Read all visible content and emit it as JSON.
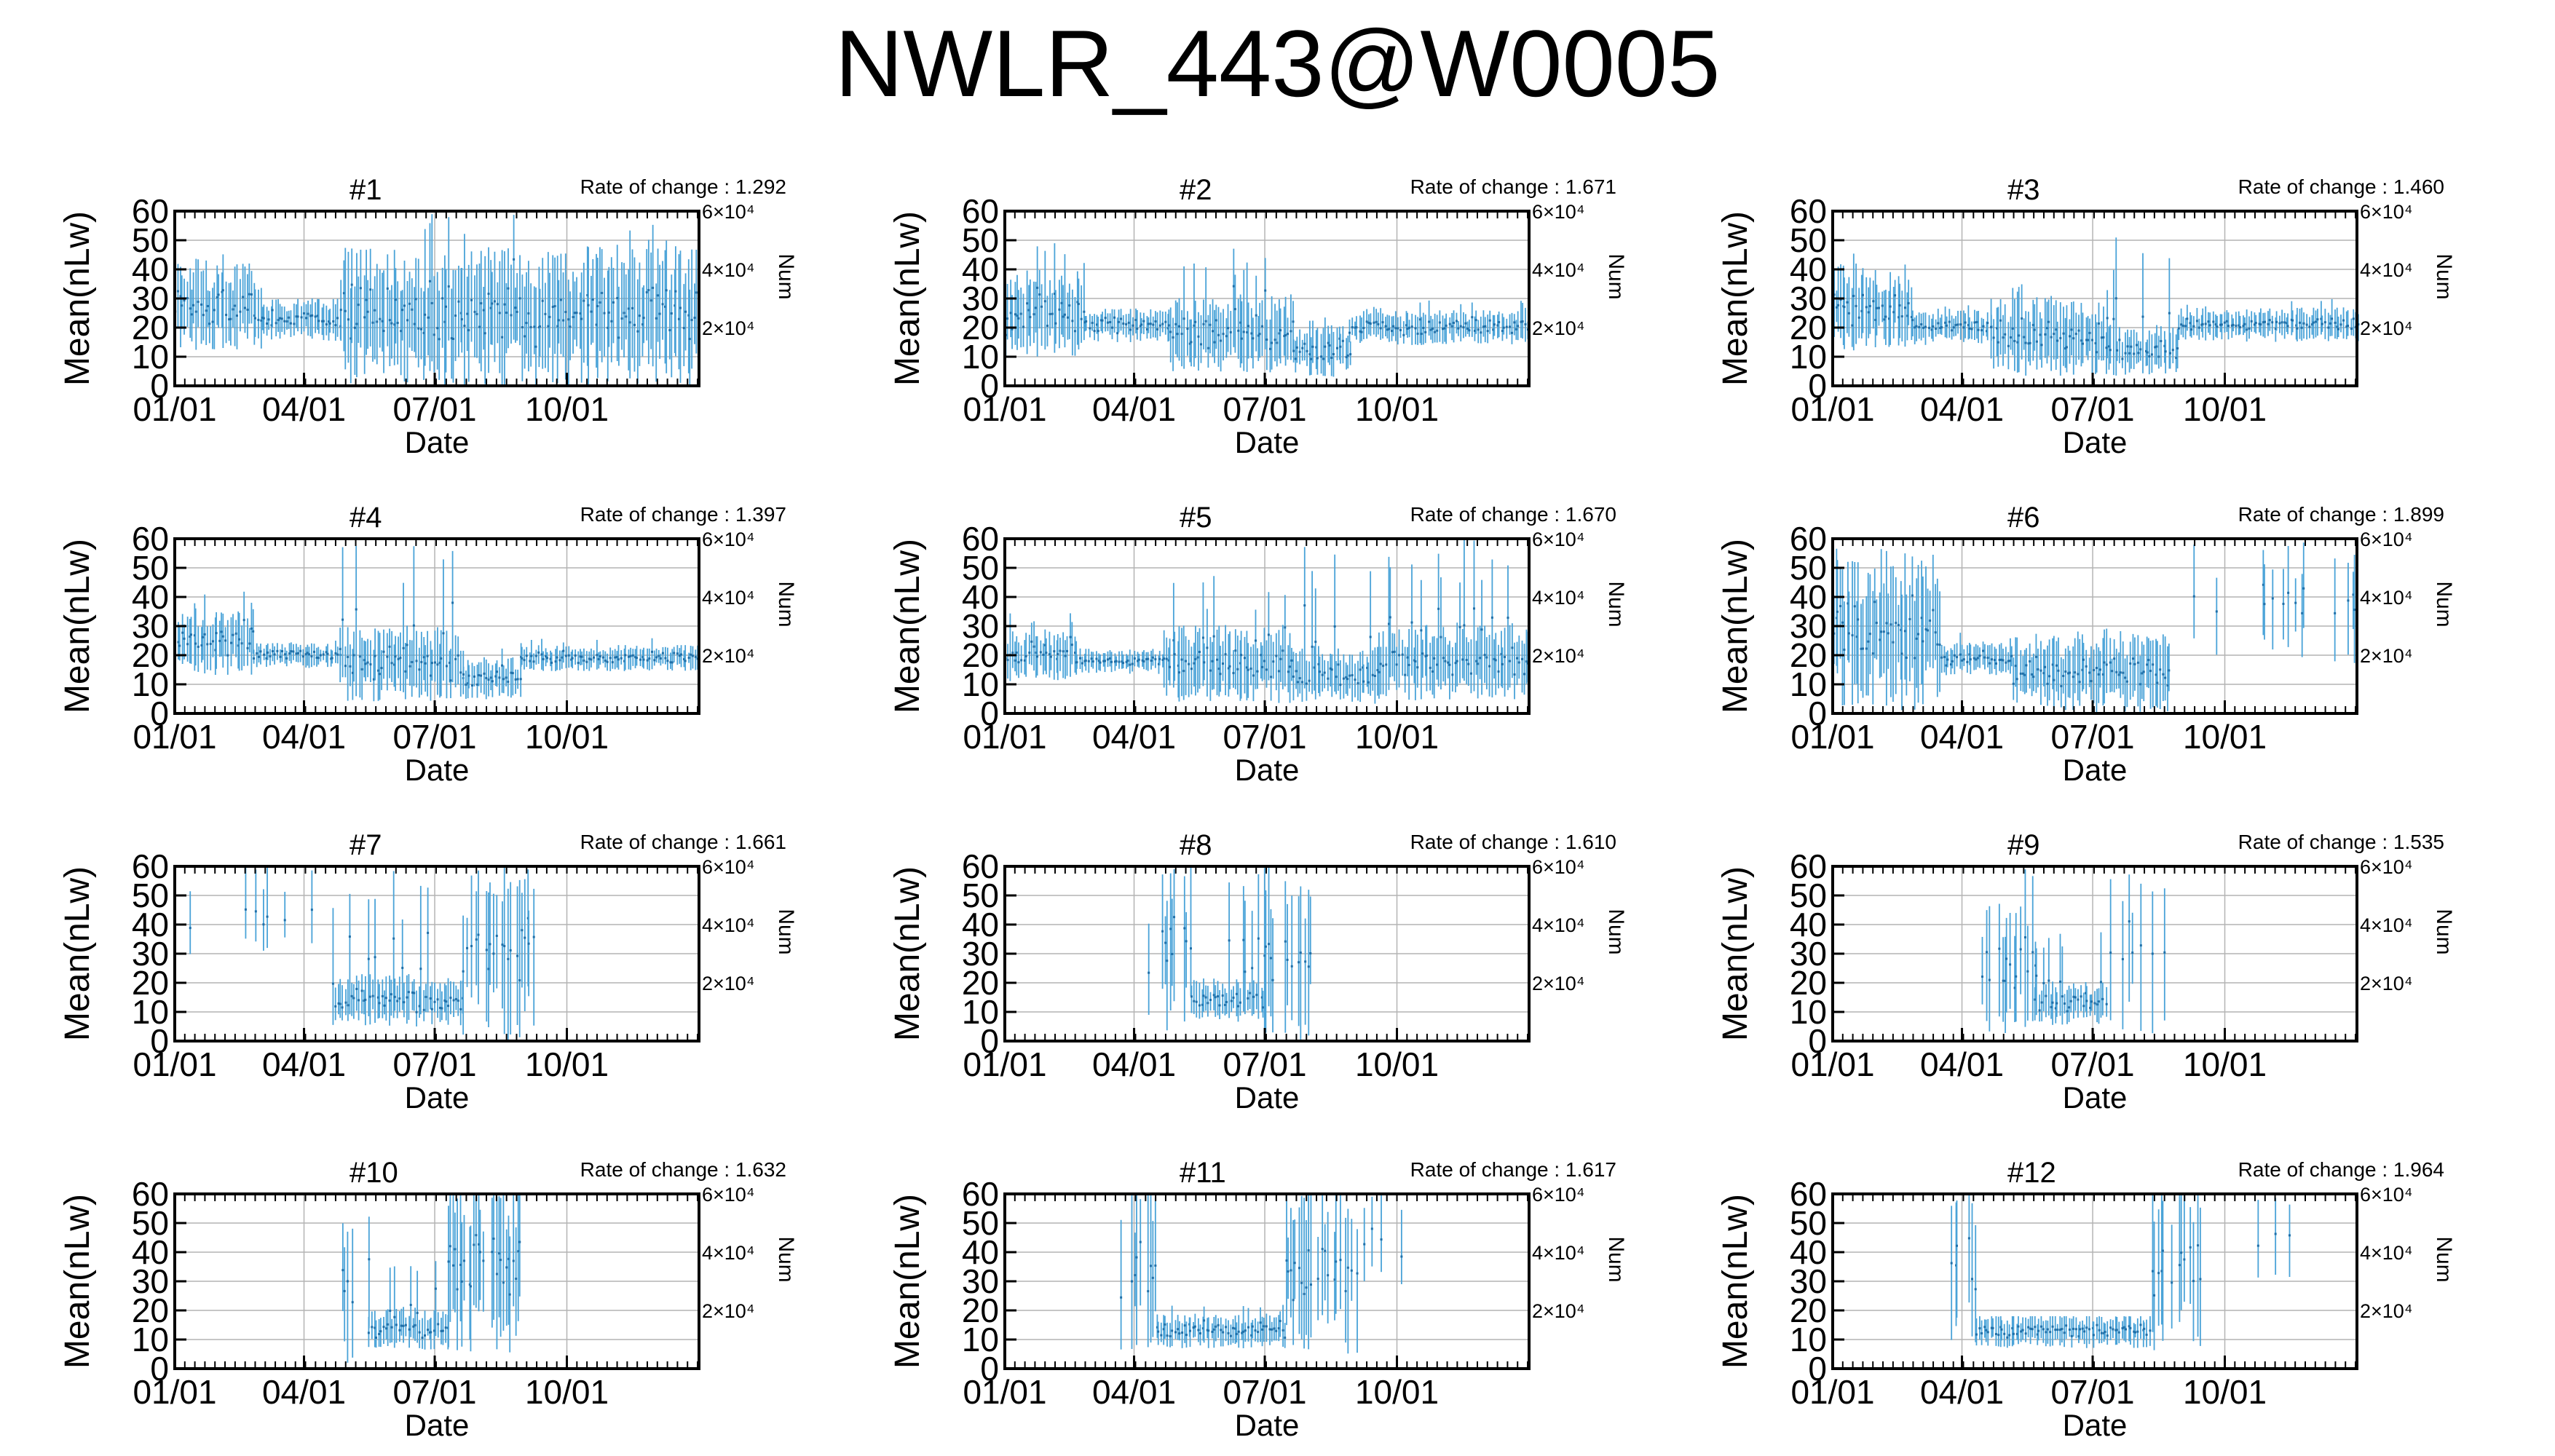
{
  "title": "NWLR_443@W0005",
  "colors": {
    "series": "#4aa3d8",
    "axis": "#000000",
    "grid": "#b4b4b4"
  },
  "common": {
    "xlabel": "Date",
    "ylabel": "Mean(nLw)",
    "y2label": "Num",
    "ylim": [
      0,
      60
    ],
    "yticks": [
      0,
      10,
      20,
      30,
      40,
      50,
      60
    ],
    "xticks": [
      "01/01",
      "04/01",
      "07/01",
      "10/01"
    ],
    "xtick_days": [
      0,
      90,
      181,
      273
    ],
    "xlim_days": [
      0,
      365
    ],
    "y2ticks_label": [
      "2×10⁴",
      "4×10⁴",
      "6×10⁴"
    ],
    "y2ticks_value": [
      20000,
      40000,
      60000
    ],
    "y2lim": [
      0,
      60000
    ],
    "rate_prefix": "Rate of change : "
  },
  "chart_data": [
    {
      "type": "scatter",
      "title": "#1",
      "rate": "1.292",
      "segments": [
        {
          "from": 0,
          "to": 60,
          "center": 27,
          "spread": 10,
          "max": 48
        },
        {
          "from": 60,
          "to": 115,
          "center": 23,
          "spread": 5,
          "max": 30
        },
        {
          "from": 115,
          "to": 365,
          "center": 24,
          "spread": 16,
          "max": 60
        }
      ]
    },
    {
      "type": "scatter",
      "title": "#2",
      "rate": "1.671",
      "segments": [
        {
          "from": 0,
          "to": 55,
          "center": 25,
          "spread": 10,
          "max": 50
        },
        {
          "from": 55,
          "to": 115,
          "center": 21,
          "spread": 4,
          "max": 28
        },
        {
          "from": 115,
          "to": 200,
          "center": 18,
          "spread": 9,
          "max": 48
        },
        {
          "from": 200,
          "to": 240,
          "center": 12,
          "spread": 6,
          "max": 25
        },
        {
          "from": 240,
          "to": 365,
          "center": 20,
          "spread": 4,
          "max": 30
        }
      ]
    },
    {
      "type": "scatter",
      "title": "#3",
      "rate": "1.460",
      "segments": [
        {
          "from": 0,
          "to": 55,
          "center": 27,
          "spread": 10,
          "max": 48
        },
        {
          "from": 55,
          "to": 110,
          "center": 20,
          "spread": 4,
          "max": 28
        },
        {
          "from": 110,
          "to": 190,
          "center": 17,
          "spread": 9,
          "max": 36
        },
        {
          "from": 190,
          "to": 240,
          "center": 12,
          "spread": 6,
          "max": 52
        },
        {
          "from": 240,
          "to": 365,
          "center": 21,
          "spread": 4,
          "max": 30
        }
      ]
    },
    {
      "type": "scatter",
      "title": "#4",
      "rate": "1.397",
      "segments": [
        {
          "from": 0,
          "to": 55,
          "center": 25,
          "spread": 8,
          "max": 43
        },
        {
          "from": 55,
          "to": 115,
          "center": 20,
          "spread": 3,
          "max": 25
        },
        {
          "from": 115,
          "to": 200,
          "center": 17,
          "spread": 9,
          "max": 58
        },
        {
          "from": 200,
          "to": 240,
          "center": 12,
          "spread": 5,
          "max": 25
        },
        {
          "from": 240,
          "to": 365,
          "center": 19,
          "spread": 3,
          "max": 26
        }
      ]
    },
    {
      "type": "scatter",
      "title": "#5",
      "rate": "1.670",
      "segments": [
        {
          "from": 0,
          "to": 50,
          "center": 20,
          "spread": 6,
          "max": 35
        },
        {
          "from": 50,
          "to": 110,
          "center": 18,
          "spread": 3,
          "max": 24
        },
        {
          "from": 110,
          "to": 200,
          "center": 17,
          "spread": 9,
          "max": 48
        },
        {
          "from": 200,
          "to": 260,
          "center": 13,
          "spread": 7,
          "max": 60
        },
        {
          "from": 260,
          "to": 365,
          "center": 18,
          "spread": 9,
          "max": 60
        }
      ]
    },
    {
      "type": "scatter",
      "title": "#6",
      "rate": "1.899",
      "segments": [
        {
          "from": 0,
          "to": 75,
          "center": 28,
          "spread": 18,
          "max": 60
        },
        {
          "from": 75,
          "to": 125,
          "center": 19,
          "spread": 4,
          "max": 30
        },
        {
          "from": 125,
          "to": 235,
          "center": 14,
          "spread": 9,
          "max": 30
        },
        {
          "from": 235,
          "to": 365,
          "center": 38,
          "spread": 14,
          "max": 60,
          "sparse": 0.18
        }
      ]
    },
    {
      "type": "scatter",
      "title": "#7",
      "rate": "1.661",
      "segments": [
        {
          "from": 10,
          "to": 110,
          "center": 45,
          "spread": 12,
          "max": 60,
          "sparse": 0.08
        },
        {
          "from": 110,
          "to": 200,
          "center": 14,
          "spread": 6,
          "max": 60
        },
        {
          "from": 200,
          "to": 250,
          "center": 30,
          "spread": 20,
          "max": 60,
          "sparse": 0.7
        }
      ]
    },
    {
      "type": "scatter",
      "title": "#8",
      "rate": "1.610",
      "segments": [
        {
          "from": 100,
          "to": 130,
          "center": 30,
          "spread": 20,
          "max": 60,
          "sparse": 0.5
        },
        {
          "from": 130,
          "to": 180,
          "center": 14,
          "spread": 5,
          "max": 60
        },
        {
          "from": 180,
          "to": 215,
          "center": 30,
          "spread": 20,
          "max": 60,
          "sparse": 0.5
        }
      ]
    },
    {
      "type": "scatter",
      "title": "#9",
      "rate": "1.535",
      "segments": [
        {
          "from": 100,
          "to": 140,
          "center": 25,
          "spread": 15,
          "max": 60,
          "sparse": 0.6
        },
        {
          "from": 140,
          "to": 190,
          "center": 13,
          "spread": 5,
          "max": 40
        },
        {
          "from": 190,
          "to": 230,
          "center": 30,
          "spread": 20,
          "max": 60,
          "sparse": 0.15
        }
      ]
    },
    {
      "type": "scatter",
      "title": "#10",
      "rate": "1.632",
      "segments": [
        {
          "from": 115,
          "to": 135,
          "center": 30,
          "spread": 20,
          "max": 60,
          "sparse": 0.6
        },
        {
          "from": 135,
          "to": 190,
          "center": 14,
          "spread": 5,
          "max": 40
        },
        {
          "from": 190,
          "to": 240,
          "center": 35,
          "spread": 20,
          "max": 60,
          "sparse": 0.7
        }
      ]
    },
    {
      "type": "scatter",
      "title": "#11",
      "rate": "1.617",
      "segments": [
        {
          "from": 80,
          "to": 105,
          "center": 35,
          "spread": 20,
          "max": 60,
          "sparse": 0.5
        },
        {
          "from": 105,
          "to": 195,
          "center": 13,
          "spread": 4,
          "max": 22
        },
        {
          "from": 195,
          "to": 245,
          "center": 35,
          "spread": 20,
          "max": 60,
          "sparse": 0.6
        },
        {
          "from": 245,
          "to": 290,
          "center": 45,
          "spread": 12,
          "max": 60,
          "sparse": 0.08
        }
      ]
    },
    {
      "type": "scatter",
      "title": "#12",
      "rate": "1.964",
      "segments": [
        {
          "from": 80,
          "to": 100,
          "center": 35,
          "spread": 20,
          "max": 60,
          "sparse": 0.4
        },
        {
          "from": 100,
          "to": 220,
          "center": 13,
          "spread": 4,
          "max": 18
        },
        {
          "from": 220,
          "to": 260,
          "center": 35,
          "spread": 20,
          "max": 60,
          "sparse": 0.6
        },
        {
          "from": 260,
          "to": 365,
          "center": 45,
          "spread": 12,
          "max": 60,
          "sparse": 0.1
        }
      ]
    }
  ]
}
